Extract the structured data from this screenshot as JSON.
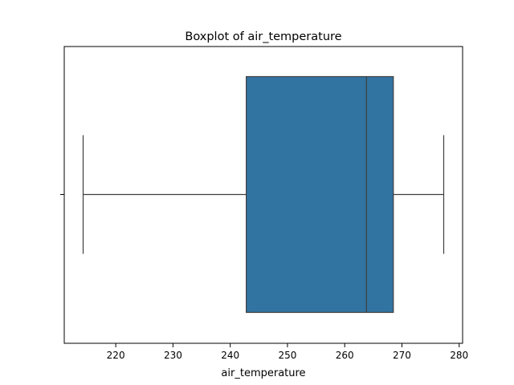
{
  "chart_data": {
    "type": "box",
    "orientation": "horizontal",
    "title": "Boxplot of air_temperature",
    "xlabel": "air_temperature",
    "ylabel": "",
    "xlim": [
      211.0,
      280.6
    ],
    "xticks": [
      220,
      230,
      240,
      250,
      260,
      270,
      280
    ],
    "grid": false,
    "series": [
      {
        "whisker_low": 214.3,
        "q1": 242.8,
        "median": 263.8,
        "q3": 268.5,
        "whisker_high": 277.3,
        "color": "#3274a1"
      }
    ]
  }
}
